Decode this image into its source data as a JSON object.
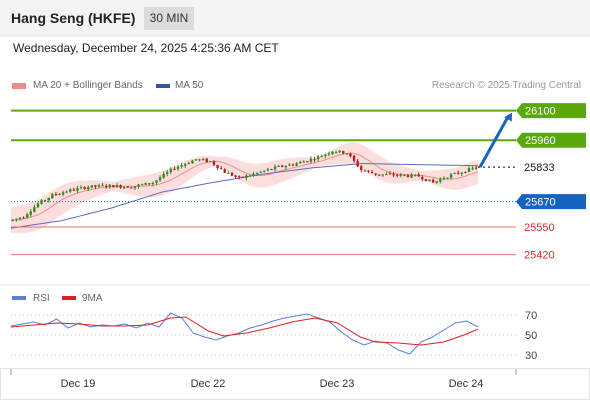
{
  "header": {
    "title": "Hang Seng (HKFE)",
    "timeframe": "30 MIN",
    "datetime": "Wednesday, December 24, 2025 4:25:36 AM CET"
  },
  "legend": {
    "ma20_bb": "MA 20 + Bollinger Bands",
    "ma50": "MA 50",
    "credit": "Research © 2025 Trading Central"
  },
  "colors": {
    "resistance": "#5aa80e",
    "support": "#1565c0",
    "target_line": "#e57373",
    "target_text": "#d32f2f",
    "current": "#333333",
    "candle": "#2f8a1b",
    "candle_down": "#b71c1c",
    "bands": "#fdd8d8",
    "ma20": "#ef8e8e",
    "ma50": "#5c6bc0",
    "rsi": "#5b7fd6",
    "ma9": "#e02020"
  },
  "chart_data": [
    {
      "type": "candlestick",
      "x_categories": [
        "Dec 19",
        "Dec 22",
        "Dec 23",
        "Dec 24"
      ],
      "y_range": [
        25300,
        26150
      ],
      "price_levels": [
        {
          "label": "26100",
          "kind": "resistance"
        },
        {
          "label": "25960",
          "kind": "resistance"
        },
        {
          "label": "25833",
          "kind": "current"
        },
        {
          "label": "25670",
          "kind": "support"
        },
        {
          "label": "25550",
          "kind": "target"
        },
        {
          "label": "25420",
          "kind": "target"
        }
      ],
      "projection": {
        "from": 25833,
        "to": 26100,
        "direction": "up"
      },
      "series": [
        {
          "name": "MA 20 + Bollinger Bands"
        },
        {
          "name": "MA 50"
        }
      ],
      "price_path": [
        [
          0,
          25580
        ],
        [
          4,
          25600
        ],
        [
          8,
          25660
        ],
        [
          12,
          25700
        ],
        [
          16,
          25720
        ],
        [
          22,
          25740
        ],
        [
          28,
          25745
        ],
        [
          34,
          25740
        ],
        [
          40,
          25760
        ],
        [
          46,
          25830
        ],
        [
          52,
          25870
        ],
        [
          56,
          25860
        ],
        [
          60,
          25810
        ],
        [
          64,
          25780
        ],
        [
          68,
          25800
        ],
        [
          74,
          25830
        ],
        [
          80,
          25850
        ],
        [
          86,
          25880
        ],
        [
          90,
          25910
        ],
        [
          94,
          25900
        ],
        [
          98,
          25820
        ],
        [
          102,
          25800
        ],
        [
          108,
          25795
        ],
        [
          114,
          25790
        ],
        [
          118,
          25760
        ],
        [
          122,
          25790
        ],
        [
          126,
          25810
        ],
        [
          130,
          25833
        ]
      ],
      "ma50_path": [
        [
          0,
          25545
        ],
        [
          14,
          25580
        ],
        [
          28,
          25640
        ],
        [
          42,
          25715
        ],
        [
          56,
          25760
        ],
        [
          70,
          25800
        ],
        [
          84,
          25830
        ],
        [
          98,
          25850
        ],
        [
          112,
          25845
        ],
        [
          130,
          25840
        ]
      ]
    },
    {
      "type": "line",
      "legend": [
        "RSI",
        "9MA"
      ],
      "y_ticks": [
        70,
        50,
        30
      ],
      "y_range": [
        20,
        80
      ],
      "series": [
        {
          "name": "RSI",
          "points": [
            [
              0,
              59
            ],
            [
              3,
              61
            ],
            [
              6,
              63
            ],
            [
              9,
              60
            ],
            [
              12,
              66
            ],
            [
              15,
              57
            ],
            [
              18,
              62
            ],
            [
              21,
              58
            ],
            [
              24,
              60
            ],
            [
              27,
              59
            ],
            [
              30,
              61
            ],
            [
              33,
              57
            ],
            [
              36,
              62
            ],
            [
              39,
              58
            ],
            [
              42,
              72
            ],
            [
              45,
              67
            ],
            [
              48,
              52
            ],
            [
              51,
              48
            ],
            [
              54,
              45
            ],
            [
              57,
              49
            ],
            [
              60,
              52
            ],
            [
              63,
              57
            ],
            [
              66,
              60
            ],
            [
              69,
              64
            ],
            [
              72,
              67
            ],
            [
              75,
              69
            ],
            [
              78,
              71
            ],
            [
              81,
              67
            ],
            [
              84,
              63
            ],
            [
              87,
              53
            ],
            [
              90,
              45
            ],
            [
              93,
              40
            ],
            [
              96,
              44
            ],
            [
              99,
              42
            ],
            [
              102,
              35
            ],
            [
              105,
              31
            ],
            [
              108,
              43
            ],
            [
              111,
              48
            ],
            [
              114,
              55
            ],
            [
              117,
              62
            ],
            [
              120,
              64
            ],
            [
              123,
              58
            ]
          ]
        },
        {
          "name": "9MA",
          "points": [
            [
              0,
              58
            ],
            [
              6,
              60
            ],
            [
              12,
              62
            ],
            [
              18,
              61
            ],
            [
              24,
              59
            ],
            [
              30,
              59
            ],
            [
              36,
              60
            ],
            [
              42,
              67
            ],
            [
              46,
              68
            ],
            [
              52,
              54
            ],
            [
              56,
              49
            ],
            [
              62,
              52
            ],
            [
              68,
              57
            ],
            [
              74,
              63
            ],
            [
              80,
              67
            ],
            [
              86,
              62
            ],
            [
              92,
              48
            ],
            [
              96,
              43
            ],
            [
              102,
              42
            ],
            [
              108,
              40
            ],
            [
              114,
              43
            ],
            [
              120,
              51
            ],
            [
              123,
              56
            ]
          ]
        }
      ]
    }
  ]
}
